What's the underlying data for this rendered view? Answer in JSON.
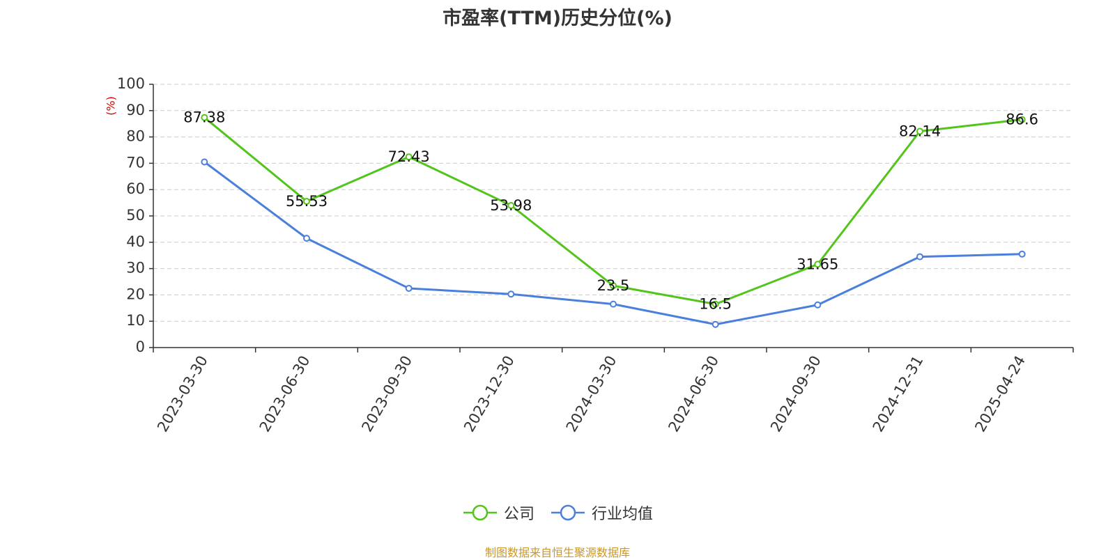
{
  "chart_data": {
    "type": "line",
    "title": "市盈率(TTM)历史分位(%)",
    "ylabel": "(%)",
    "xlabel": "",
    "ylim": [
      0,
      100
    ],
    "yticks": [
      0,
      10,
      20,
      30,
      40,
      50,
      60,
      70,
      80,
      90,
      100
    ],
    "categories": [
      "2023-03-30",
      "2023-06-30",
      "2023-09-30",
      "2023-12-30",
      "2024-03-30",
      "2024-06-30",
      "2024-09-30",
      "2024-12-31",
      "2025-04-24"
    ],
    "series": [
      {
        "name": "公司",
        "color": "#52c41a",
        "values": [
          87.38,
          55.53,
          72.43,
          53.98,
          23.5,
          16.5,
          31.65,
          82.14,
          86.6
        ],
        "show_labels": true
      },
      {
        "name": "行业均值",
        "color": "#4a7fdc",
        "values": [
          70.5,
          41.5,
          22.5,
          20.3,
          16.5,
          8.8,
          16.2,
          34.5,
          35.5
        ],
        "show_labels": false
      }
    ],
    "grid": true,
    "legend_position": "bottom-center"
  },
  "footer": "制图数据来自恒生聚源数据库"
}
